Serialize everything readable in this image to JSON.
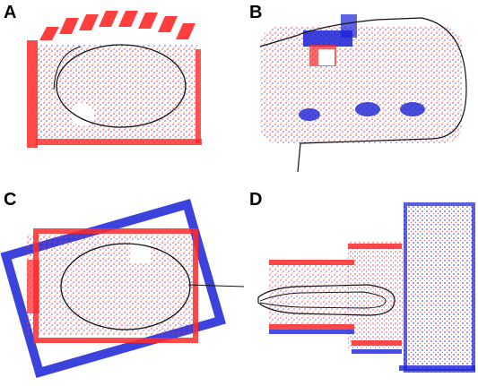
{
  "panels": [
    {
      "label": "A"
    },
    {
      "label": "B"
    },
    {
      "label": "C"
    },
    {
      "label": "D"
    }
  ],
  "colors": {
    "red": "#ff2a2a",
    "blue": "#1a22d6",
    "trajectory": "#111111"
  }
}
